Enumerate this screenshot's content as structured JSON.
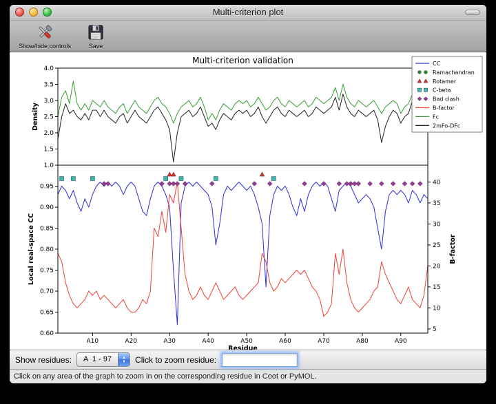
{
  "window": {
    "title": "Multi-criterion plot",
    "toolbar": {
      "controls_label": "Show/hide controls",
      "save_label": "Save"
    },
    "controls": {
      "show_residues_label": "Show residues:",
      "residue_range_value": "A  1 - 97",
      "zoom_label": "Click to zoom residue:",
      "zoom_input_value": ""
    },
    "status_text": "Click on any area of the graph to zoom in on the corresponding residue in Coot or PyMOL."
  },
  "chart_data": {
    "type": "line",
    "title": "Multi-criterion validation",
    "xlabel": "Residue",
    "xlim": [
      1,
      97
    ],
    "x_tick_positions": [
      10,
      20,
      30,
      40,
      50,
      60,
      70,
      80,
      90
    ],
    "x_tick_labels": [
      "A10",
      "A20",
      "A30",
      "A40",
      "A50",
      "A60",
      "A70",
      "A80",
      "A90"
    ],
    "top": {
      "ylabel": "Density",
      "ylim": [
        1.0,
        4.0
      ],
      "yticks": [
        1.0,
        1.5,
        2.0,
        2.5,
        3.0,
        3.5,
        4.0
      ],
      "series": [
        {
          "name": "Fc",
          "color": "#3da23d",
          "values": [
            2.5,
            3.1,
            3.3,
            2.9,
            3.6,
            2.9,
            2.7,
            2.9,
            2.7,
            3.0,
            2.9,
            2.8,
            3.0,
            2.8,
            2.7,
            2.6,
            2.8,
            2.9,
            2.6,
            2.8,
            3.0,
            2.8,
            2.7,
            2.6,
            2.8,
            3.0,
            3.1,
            2.9,
            2.8,
            2.6,
            2.3,
            2.6,
            2.8,
            2.9,
            3.0,
            2.8,
            2.9,
            3.1,
            2.8,
            2.4,
            2.6,
            2.4,
            2.7,
            2.9,
            2.8,
            2.7,
            2.9,
            3.0,
            2.9,
            3.0,
            2.8,
            2.9,
            3.1,
            2.9,
            2.7,
            2.8,
            3.0,
            3.1,
            2.9,
            2.8,
            3.0,
            2.9,
            2.8,
            2.9,
            3.0,
            2.8,
            2.9,
            3.1,
            3.0,
            2.9,
            3.0,
            3.1,
            3.4,
            3.0,
            3.5,
            3.1,
            2.9,
            2.8,
            3.0,
            2.9,
            2.8,
            2.9,
            3.0,
            2.8,
            2.6,
            2.8,
            2.9,
            3.0,
            2.9,
            2.6,
            2.8,
            2.9,
            3.2,
            3.0,
            2.6,
            2.9,
            3.4
          ]
        },
        {
          "name": "2mFo-DFc",
          "color": "#2a2a2a",
          "values": [
            1.8,
            2.5,
            2.9,
            2.6,
            2.7,
            2.5,
            2.4,
            2.6,
            2.4,
            2.7,
            2.7,
            2.5,
            2.7,
            2.5,
            2.4,
            2.3,
            2.5,
            2.6,
            2.3,
            2.5,
            2.7,
            2.5,
            2.4,
            2.3,
            2.5,
            2.7,
            2.8,
            2.6,
            2.4,
            2.1,
            1.1,
            2.0,
            2.5,
            2.6,
            2.7,
            2.5,
            2.6,
            2.8,
            2.5,
            2.2,
            2.3,
            2.1,
            2.4,
            2.6,
            2.5,
            2.4,
            2.6,
            2.7,
            2.6,
            2.7,
            2.5,
            2.6,
            2.8,
            2.5,
            2.3,
            2.5,
            2.7,
            2.8,
            2.6,
            2.5,
            2.7,
            2.6,
            2.5,
            2.6,
            2.7,
            2.5,
            2.6,
            2.8,
            2.7,
            2.6,
            2.7,
            2.8,
            3.1,
            2.7,
            3.2,
            2.8,
            2.6,
            2.5,
            2.7,
            2.6,
            2.5,
            2.6,
            2.7,
            2.4,
            1.7,
            2.2,
            2.5,
            2.7,
            2.6,
            2.3,
            2.5,
            2.6,
            3.0,
            2.7,
            2.3,
            2.6,
            3.1
          ]
        }
      ]
    },
    "bottom": {
      "ylabel_left": "Local real-space CC",
      "ylabel_right": "B-factor",
      "ylim_left": [
        0.6,
        1.0
      ],
      "yticks_left": [
        0.6,
        0.65,
        0.7,
        0.75,
        0.8,
        0.85,
        0.9,
        0.95
      ],
      "ylim_right": [
        4,
        44
      ],
      "yticks_right": [
        5,
        10,
        15,
        20,
        25,
        30,
        35,
        40
      ],
      "series": [
        {
          "name": "CC",
          "axis": "left",
          "color": "#3434d8",
          "values": [
            0.93,
            0.95,
            0.94,
            0.92,
            0.94,
            0.91,
            0.89,
            0.92,
            0.9,
            0.93,
            0.95,
            0.96,
            0.95,
            0.96,
            0.95,
            0.96,
            0.95,
            0.93,
            0.95,
            0.96,
            0.95,
            0.92,
            0.89,
            0.88,
            0.92,
            0.95,
            0.96,
            0.95,
            0.93,
            0.9,
            0.75,
            0.62,
            0.91,
            0.95,
            0.96,
            0.95,
            0.96,
            0.95,
            0.94,
            0.93,
            0.9,
            0.81,
            0.86,
            0.93,
            0.95,
            0.94,
            0.95,
            0.96,
            0.95,
            0.94,
            0.95,
            0.93,
            0.9,
            0.86,
            0.71,
            0.88,
            0.93,
            0.95,
            0.94,
            0.95,
            0.93,
            0.9,
            0.88,
            0.92,
            0.89,
            0.93,
            0.95,
            0.96,
            0.95,
            0.96,
            0.95,
            0.92,
            0.89,
            0.94,
            0.95,
            0.96,
            0.95,
            0.93,
            0.91,
            0.92,
            0.93,
            0.92,
            0.9,
            0.85,
            0.8,
            0.89,
            0.93,
            0.94,
            0.93,
            0.94,
            0.93,
            0.91,
            0.94,
            0.93,
            0.91,
            0.93,
            0.92
          ]
        },
        {
          "name": "B-factor",
          "axis": "right",
          "color": "#f0483e",
          "values": [
            23,
            21,
            16,
            13,
            11,
            10,
            11,
            12,
            14,
            13,
            14,
            12,
            13,
            12,
            11,
            10,
            11,
            12,
            10,
            9,
            9,
            10,
            12,
            11,
            14,
            29,
            27,
            33,
            28,
            37,
            35,
            40,
            29,
            18,
            14,
            12,
            13,
            15,
            13,
            12,
            14,
            16,
            14,
            12,
            13,
            14,
            15,
            13,
            12,
            13,
            14,
            15,
            16,
            23,
            21,
            16,
            14,
            15,
            17,
            16,
            17,
            18,
            19,
            18,
            19,
            17,
            15,
            14,
            12,
            8,
            9,
            11,
            23,
            18,
            24,
            16,
            12,
            10,
            9,
            10,
            11,
            12,
            14,
            15,
            21,
            18,
            16,
            14,
            12,
            11,
            13,
            15,
            12,
            11,
            10,
            13,
            20
          ]
        }
      ],
      "markers": [
        {
          "name": "Rotamer",
          "shape": "triangle",
          "color": "#d03a30",
          "y": 0.978,
          "residues": [
            30,
            31,
            54
          ]
        },
        {
          "name": "C-beta",
          "shape": "square",
          "color": "#3cb8b0",
          "y": 0.968,
          "residues": [
            2,
            5,
            10,
            29,
            33,
            42,
            57
          ]
        },
        {
          "name": "Bad clash",
          "shape": "diamond",
          "color": "#9b3d9b",
          "y": 0.956,
          "residues": [
            13,
            14,
            28,
            30,
            31,
            32,
            34,
            41,
            52,
            56,
            65,
            70,
            74,
            76,
            77,
            78,
            79,
            82,
            85,
            88,
            91,
            93,
            95
          ]
        }
      ]
    },
    "legend": [
      {
        "label": "CC",
        "type": "line",
        "color": "#3434d8"
      },
      {
        "label": "Ramachandran",
        "type": "circle",
        "color": "#2e8b2e"
      },
      {
        "label": "Rotamer",
        "type": "triangle",
        "color": "#d03a30"
      },
      {
        "label": "C-beta",
        "type": "square",
        "color": "#3cb8b0"
      },
      {
        "label": "Bad clash",
        "type": "diamond",
        "color": "#9b3d9b"
      },
      {
        "label": "B-factor",
        "type": "line",
        "color": "#f0483e"
      },
      {
        "label": "Fc",
        "type": "line",
        "color": "#3da23d"
      },
      {
        "label": "2mFo-DFc",
        "type": "line",
        "color": "#2a2a2a"
      }
    ]
  }
}
